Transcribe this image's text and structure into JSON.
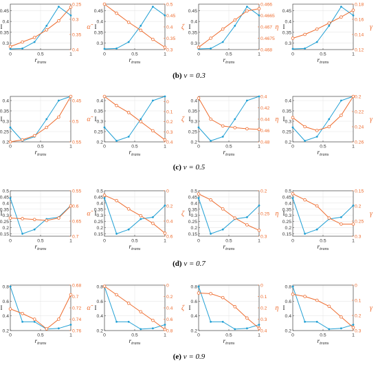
{
  "captions": [
    {
      "letter": "(b)",
      "text": "ν = 0.3"
    },
    {
      "letter": "(c)",
      "text": "ν = 0.5"
    },
    {
      "letter": "(d)",
      "text": "ν = 0.7"
    },
    {
      "letter": "(e)",
      "text": "ν = 0.9"
    }
  ],
  "colors": {
    "left": "#1f9fd4",
    "right": "#ee6b2d"
  },
  "chart_data": [
    {
      "type": "line",
      "row": 0,
      "col": 0,
      "xlabel": "r_trans",
      "ylabel_left": "I",
      "ylabel_right": "α̃",
      "x": [
        0,
        0.2,
        0.4,
        0.6,
        0.8,
        1
      ],
      "xticks": [
        "0",
        "0.5",
        "1"
      ],
      "left": {
        "ylim": [
          0.27,
          0.48
        ],
        "yticks": [
          0.3,
          0.35,
          0.4,
          0.45
        ],
        "ytick_labels": [
          "0.3",
          "0.35",
          "0.4",
          "0.45"
        ],
        "values": [
          0.273,
          0.275,
          0.305,
          0.38,
          0.468,
          0.428
        ]
      },
      "right": {
        "ylim": [
          0.4,
          0.25
        ],
        "reversed": true,
        "yticks": [
          0.25,
          0.3,
          0.35,
          0.4
        ],
        "ytick_labels": [
          "0.25",
          "0.3",
          "0.35",
          "0.4"
        ],
        "values": [
          0.39,
          0.375,
          0.36,
          0.335,
          0.305,
          0.26
        ]
      }
    },
    {
      "type": "line",
      "row": 0,
      "col": 1,
      "xlabel": "r_trans",
      "ylabel_left": "I",
      "ylabel_right": "ζ",
      "x": [
        0,
        0.2,
        0.4,
        0.6,
        0.8,
        1
      ],
      "xticks": [
        "0",
        "0.5",
        "1"
      ],
      "left": {
        "ylim": [
          0.27,
          0.48
        ],
        "yticks": [
          0.3,
          0.35,
          0.4,
          0.45
        ],
        "ytick_labels": [
          "0.3",
          "0.35",
          "0.4",
          "0.45"
        ],
        "values": [
          0.273,
          0.275,
          0.305,
          0.38,
          0.468,
          0.428
        ]
      },
      "right": {
        "ylim": [
          0.3,
          0.5
        ],
        "reversed": true,
        "yticks": [
          0.3,
          0.35,
          0.4,
          0.45,
          0.5
        ],
        "ytick_labels": [
          "0.3",
          "0.35",
          "0.4",
          "0.45",
          "0.5"
        ],
        "values": [
          0.5,
          0.46,
          0.42,
          0.385,
          0.345,
          0.31
        ]
      }
    },
    {
      "type": "line",
      "row": 0,
      "col": 2,
      "xlabel": "r_trans",
      "ylabel_left": "I",
      "ylabel_right": "η",
      "x": [
        0,
        0.2,
        0.4,
        0.6,
        0.8,
        1
      ],
      "xticks": [
        "0",
        "0.5",
        "1"
      ],
      "left": {
        "ylim": [
          0.27,
          0.48
        ],
        "yticks": [
          0.3,
          0.35,
          0.4,
          0.45
        ],
        "ytick_labels": [
          "0.3",
          "0.35",
          "0.4",
          "0.45"
        ],
        "values": [
          0.273,
          0.275,
          0.305,
          0.38,
          0.468,
          0.428
        ]
      },
      "right": {
        "ylim": [
          0.468,
          0.466
        ],
        "reversed": true,
        "yticks": [
          0.466,
          0.4665,
          0.467,
          0.4675,
          0.468
        ],
        "ytick_labels": [
          "0.466",
          "0.4665",
          "0.467",
          "0.4675",
          "0.468"
        ],
        "values": [
          0.4679,
          0.4675,
          0.4671,
          0.4667,
          0.4663,
          0.4662
        ]
      }
    },
    {
      "type": "line",
      "row": 0,
      "col": 3,
      "xlabel": "r_trans",
      "ylabel_left": "I",
      "ylabel_right": "γ",
      "x": [
        0,
        0.2,
        0.4,
        0.6,
        0.8,
        1
      ],
      "xticks": [
        "0",
        "0.5",
        "1"
      ],
      "left": {
        "ylim": [
          0.27,
          0.48
        ],
        "yticks": [
          0.3,
          0.35,
          0.4,
          0.45
        ],
        "ytick_labels": [
          "0.3",
          "0.35",
          "0.4",
          "0.45"
        ],
        "values": [
          0.273,
          0.275,
          0.305,
          0.38,
          0.468,
          0.428
        ]
      },
      "right": {
        "ylim": [
          0.12,
          0.18
        ],
        "reversed": false,
        "yticks": [
          0.12,
          0.14,
          0.16,
          0.18
        ],
        "ytick_labels": [
          "0.12",
          "0.14",
          "0.16",
          "0.18"
        ],
        "values": [
          0.135,
          0.14,
          0.147,
          0.155,
          0.163,
          0.172
        ]
      }
    },
    {
      "type": "line",
      "row": 1,
      "col": 0,
      "xlabel": "r_trans",
      "ylabel_left": "I",
      "ylabel_right": "α̃",
      "x": [
        0,
        0.2,
        0.4,
        0.6,
        0.8,
        1
      ],
      "xticks": [
        "0",
        "0.5",
        "1"
      ],
      "left": {
        "ylim": [
          0.2,
          0.42
        ],
        "yticks": [
          0.2,
          0.25,
          0.3,
          0.35,
          0.4
        ],
        "ytick_labels": [
          "0.2",
          "0.25",
          "0.3",
          "0.35",
          "0.4"
        ],
        "values": [
          0.27,
          0.205,
          0.225,
          0.31,
          0.4,
          0.42
        ]
      },
      "right": {
        "ylim": [
          0.55,
          0.44
        ],
        "reversed": true,
        "yticks": [
          0.45,
          0.5,
          0.55
        ],
        "ytick_labels": [
          "0.45",
          "0.5",
          "0.55"
        ],
        "values": [
          0.55,
          0.545,
          0.535,
          0.515,
          0.49,
          0.44
        ]
      }
    },
    {
      "type": "line",
      "row": 1,
      "col": 1,
      "xlabel": "r_trans",
      "ylabel_left": "I",
      "ylabel_right": "ζ",
      "x": [
        0,
        0.2,
        0.4,
        0.6,
        0.8,
        1
      ],
      "xticks": [
        "0",
        "0.5",
        "1"
      ],
      "left": {
        "ylim": [
          0.2,
          0.42
        ],
        "yticks": [
          0.2,
          0.25,
          0.3,
          0.35,
          0.4
        ],
        "ytick_labels": [
          "0.2",
          "0.25",
          "0.3",
          "0.35",
          "0.4"
        ],
        "values": [
          0.27,
          0.205,
          0.225,
          0.31,
          0.4,
          0.42
        ]
      },
      "right": {
        "ylim": [
          0.4,
          -0.05
        ],
        "reversed": true,
        "yticks": [
          0,
          0.1,
          0.2,
          0.3,
          0.4
        ],
        "ytick_labels": [
          "0",
          "0.1",
          "0.2",
          "0.3",
          "0.4"
        ],
        "values": [
          -0.05,
          0.04,
          0.11,
          0.2,
          0.29,
          0.38
        ]
      }
    },
    {
      "type": "line",
      "row": 1,
      "col": 2,
      "xlabel": "r_trans",
      "ylabel_left": "I",
      "ylabel_right": "η",
      "x": [
        0,
        0.2,
        0.4,
        0.6,
        0.8,
        1
      ],
      "xticks": [
        "0",
        "0.5",
        "1"
      ],
      "left": {
        "ylim": [
          0.2,
          0.42
        ],
        "yticks": [
          0.2,
          0.25,
          0.3,
          0.35,
          0.4
        ],
        "ytick_labels": [
          "0.2",
          "0.25",
          "0.3",
          "0.35",
          "0.4"
        ],
        "values": [
          0.27,
          0.205,
          0.225,
          0.31,
          0.4,
          0.42
        ]
      },
      "right": {
        "ylim": [
          0.48,
          0.4
        ],
        "reversed": true,
        "yticks": [
          0.4,
          0.42,
          0.44,
          0.46,
          0.48
        ],
        "ytick_labels": [
          "0.4",
          "0.42",
          "0.44",
          "0.46",
          "0.48"
        ],
        "values": [
          0.403,
          0.44,
          0.452,
          0.455,
          0.457,
          0.458
        ]
      }
    },
    {
      "type": "line",
      "row": 1,
      "col": 3,
      "xlabel": "r_trans",
      "ylabel_left": "I",
      "ylabel_right": "γ",
      "x": [
        0,
        0.2,
        0.4,
        0.6,
        0.8,
        1
      ],
      "xticks": [
        "0",
        "0.5",
        "1"
      ],
      "left": {
        "ylim": [
          0.2,
          0.42
        ],
        "yticks": [
          0.2,
          0.25,
          0.3,
          0.35,
          0.4
        ],
        "ytick_labels": [
          "0.2",
          "0.25",
          "0.3",
          "0.35",
          "0.4"
        ],
        "values": [
          0.27,
          0.205,
          0.225,
          0.31,
          0.4,
          0.42
        ]
      },
      "right": {
        "ylim": [
          0.26,
          0.2
        ],
        "reversed": true,
        "yticks": [
          0.2,
          0.22,
          0.24,
          0.26
        ],
        "ytick_labels": [
          "0.2",
          "0.22",
          "0.24",
          "0.26"
        ],
        "values": [
          0.228,
          0.24,
          0.245,
          0.24,
          0.225,
          0.2
        ]
      }
    },
    {
      "type": "line",
      "row": 2,
      "col": 0,
      "xlabel": "r_trans",
      "ylabel_left": "I",
      "ylabel_right": "α̃",
      "x": [
        0,
        0.2,
        0.4,
        0.6,
        0.8,
        1
      ],
      "xticks": [
        "0",
        "0.5",
        "1"
      ],
      "left": {
        "ylim": [
          0.13,
          0.5
        ],
        "yticks": [
          0.15,
          0.2,
          0.25,
          0.3,
          0.35,
          0.4,
          0.45,
          0.5
        ],
        "ytick_labels": [
          "0.15",
          "0.2",
          "0.25",
          "0.3",
          "0.35",
          "0.4",
          "0.45",
          "0.5"
        ],
        "values": [
          0.44,
          0.15,
          0.185,
          0.27,
          0.285,
          0.38
        ]
      },
      "right": {
        "ylim": [
          0.7,
          0.55
        ],
        "reversed": true,
        "yticks": [
          0.55,
          0.6,
          0.65,
          0.7
        ],
        "ytick_labels": [
          "0.55",
          "0.6",
          "0.65",
          "0.7"
        ],
        "values": [
          0.64,
          0.642,
          0.645,
          0.648,
          0.64,
          0.6
        ]
      }
    },
    {
      "type": "line",
      "row": 2,
      "col": 1,
      "xlabel": "r_trans",
      "ylabel_left": "I",
      "ylabel_right": "ζ",
      "x": [
        0,
        0.2,
        0.4,
        0.6,
        0.8,
        1
      ],
      "xticks": [
        "0",
        "0.5",
        "1"
      ],
      "left": {
        "ylim": [
          0.13,
          0.5
        ],
        "yticks": [
          0.15,
          0.2,
          0.25,
          0.3,
          0.35,
          0.4,
          0.45,
          0.5
        ],
        "ytick_labels": [
          "0.15",
          "0.2",
          "0.25",
          "0.3",
          "0.35",
          "0.4",
          "0.45",
          "0.5"
        ],
        "values": [
          0.44,
          0.15,
          0.185,
          0.27,
          0.285,
          0.38
        ]
      },
      "right": {
        "ylim": [
          0.6,
          0
        ],
        "reversed": true,
        "yticks": [
          0,
          0.2,
          0.4,
          0.6
        ],
        "ytick_labels": [
          "0",
          "0.2",
          "0.4",
          "0.6"
        ],
        "values": [
          0.06,
          0.13,
          0.24,
          0.33,
          0.43,
          0.56
        ]
      }
    },
    {
      "type": "line",
      "row": 2,
      "col": 2,
      "xlabel": "r_trans",
      "ylabel_left": "I",
      "ylabel_right": "η",
      "x": [
        0,
        0.2,
        0.4,
        0.6,
        0.8,
        1
      ],
      "xticks": [
        "0",
        "0.5",
        "1"
      ],
      "left": {
        "ylim": [
          0.13,
          0.5
        ],
        "yticks": [
          0.15,
          0.2,
          0.25,
          0.3,
          0.35,
          0.4,
          0.45,
          0.5
        ],
        "ytick_labels": [
          "0.15",
          "0.2",
          "0.25",
          "0.3",
          "0.35",
          "0.4",
          "0.45",
          "0.5"
        ],
        "values": [
          0.44,
          0.15,
          0.185,
          0.27,
          0.285,
          0.38
        ]
      },
      "right": {
        "ylim": [
          0.3,
          0.2
        ],
        "reversed": true,
        "yticks": [
          0.2,
          0.25,
          0.3
        ],
        "ytick_labels": [
          "0.2",
          "0.25",
          "0.3"
        ],
        "values": [
          0.207,
          0.22,
          0.24,
          0.26,
          0.275,
          0.287
        ]
      }
    },
    {
      "type": "line",
      "row": 2,
      "col": 3,
      "xlabel": "r_trans",
      "ylabel_left": "I",
      "ylabel_right": "γ",
      "x": [
        0,
        0.2,
        0.4,
        0.6,
        0.8,
        1
      ],
      "xticks": [
        "0",
        "0.5",
        "1"
      ],
      "left": {
        "ylim": [
          0.13,
          0.5
        ],
        "yticks": [
          0.15,
          0.2,
          0.25,
          0.3,
          0.35,
          0.4,
          0.45,
          0.5
        ],
        "ytick_labels": [
          "0.15",
          "0.2",
          "0.25",
          "0.3",
          "0.35",
          "0.4",
          "0.45",
          "0.5"
        ],
        "values": [
          0.44,
          0.15,
          0.185,
          0.27,
          0.285,
          0.38
        ]
      },
      "right": {
        "ylim": [
          0.3,
          0.15
        ],
        "reversed": true,
        "yticks": [
          0.15,
          0.2,
          0.25,
          0.3
        ],
        "ytick_labels": [
          "0.15",
          "0.2",
          "0.25",
          "0.3"
        ],
        "values": [
          0.16,
          0.18,
          0.2,
          0.24,
          0.26,
          0.26
        ]
      }
    },
    {
      "type": "line",
      "row": 3,
      "col": 0,
      "xlabel": "r_trans",
      "ylabel_left": "I",
      "ylabel_right": "α̃",
      "x": [
        0,
        0.2,
        0.4,
        0.6,
        0.8,
        1
      ],
      "xticks": [
        "0",
        "0.5",
        "1"
      ],
      "left": {
        "ylim": [
          0.2,
          0.82
        ],
        "yticks": [
          0.2,
          0.4,
          0.6,
          0.8
        ],
        "ytick_labels": [
          "0.2",
          "0.4",
          "0.6",
          "0.8"
        ],
        "values": [
          0.8,
          0.32,
          0.32,
          0.22,
          0.23,
          0.28
        ]
      },
      "right": {
        "ylim": [
          0.76,
          0.68
        ],
        "reversed": true,
        "yticks": [
          0.68,
          0.7,
          0.72,
          0.74,
          0.76
        ],
        "ytick_labels": [
          "0.68",
          "0.7",
          "0.72",
          "0.74",
          "0.76"
        ],
        "values": [
          0.722,
          0.73,
          0.74,
          0.757,
          0.74,
          0.697
        ]
      }
    },
    {
      "type": "line",
      "row": 3,
      "col": 1,
      "xlabel": "r_trans",
      "ylabel_left": "I",
      "ylabel_right": "ζ",
      "x": [
        0,
        0.2,
        0.4,
        0.6,
        0.8,
        1
      ],
      "xticks": [
        "0",
        "0.5",
        "1"
      ],
      "left": {
        "ylim": [
          0.2,
          0.82
        ],
        "yticks": [
          0.2,
          0.4,
          0.6,
          0.8
        ],
        "ytick_labels": [
          "0.2",
          "0.4",
          "0.6",
          "0.8"
        ],
        "values": [
          0.8,
          0.32,
          0.32,
          0.22,
          0.23,
          0.28
        ]
      },
      "right": {
        "ylim": [
          0.8,
          0
        ],
        "reversed": true,
        "yticks": [
          0,
          0.2,
          0.4,
          0.6,
          0.8
        ],
        "ytick_labels": [
          "0",
          "0.2",
          "0.4",
          "0.6",
          "0.8"
        ],
        "values": [
          0.02,
          0.17,
          0.32,
          0.47,
          0.62,
          0.78
        ]
      }
    },
    {
      "type": "line",
      "row": 3,
      "col": 2,
      "xlabel": "r_trans",
      "ylabel_left": "I",
      "ylabel_right": "η",
      "x": [
        0,
        0.2,
        0.4,
        0.6,
        0.8,
        1
      ],
      "xticks": [
        "0",
        "0.5",
        "1"
      ],
      "left": {
        "ylim": [
          0.2,
          0.82
        ],
        "yticks": [
          0.2,
          0.4,
          0.6,
          0.8
        ],
        "ytick_labels": [
          "0.2",
          "0.4",
          "0.6",
          "0.8"
        ],
        "values": [
          0.8,
          0.32,
          0.32,
          0.22,
          0.23,
          0.28
        ]
      },
      "right": {
        "ylim": [
          0.4,
          0
        ],
        "reversed": true,
        "yticks": [
          0,
          0.1,
          0.2,
          0.3,
          0.4
        ],
        "ytick_labels": [
          "0",
          "0.1",
          "0.2",
          "0.3",
          "0.4"
        ],
        "values": [
          0.07,
          0.075,
          0.11,
          0.19,
          0.29,
          0.38
        ]
      }
    },
    {
      "type": "line",
      "row": 3,
      "col": 3,
      "xlabel": "r_trans",
      "ylabel_left": "I",
      "ylabel_right": "γ",
      "x": [
        0,
        0.2,
        0.4,
        0.6,
        0.8,
        1
      ],
      "xticks": [
        "0",
        "0.5",
        "1"
      ],
      "left": {
        "ylim": [
          0.2,
          0.82
        ],
        "yticks": [
          0.2,
          0.4,
          0.6,
          0.8
        ],
        "ytick_labels": [
          "0.2",
          "0.4",
          "0.6",
          "0.8"
        ],
        "values": [
          0.8,
          0.32,
          0.32,
          0.22,
          0.23,
          0.28
        ]
      },
      "right": {
        "ylim": [
          0.3,
          0
        ],
        "reversed": true,
        "yticks": [
          0,
          0.1,
          0.2,
          0.3
        ],
        "ytick_labels": [
          "0",
          "0.1",
          "0.2",
          "0.3"
        ],
        "values": [
          0.06,
          0.075,
          0.1,
          0.14,
          0.21,
          0.28
        ]
      }
    }
  ]
}
